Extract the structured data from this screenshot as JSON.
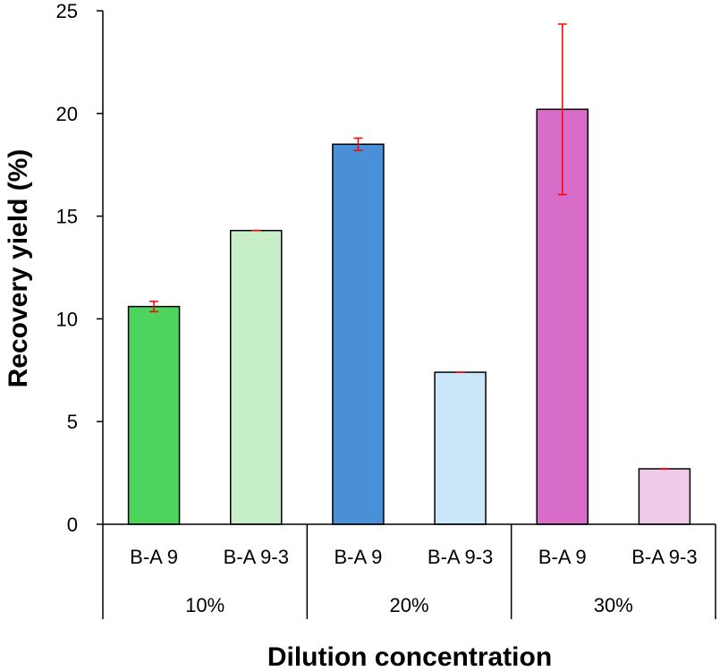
{
  "chart_data": {
    "type": "bar",
    "title": "",
    "xlabel": "Dilution concentration",
    "ylabel": "Recovery yield (%)",
    "ylim": [
      0,
      25
    ],
    "yticks": [
      0,
      5,
      10,
      15,
      20,
      25
    ],
    "groups": [
      {
        "label": "10%",
        "bars": [
          {
            "category": "B-A 9",
            "value": 10.6,
            "error": 0.25,
            "color": "#4cd45c"
          },
          {
            "category": "B-A 9-3",
            "value": 14.3,
            "error": 0.0,
            "color": "#c6efc8"
          }
        ]
      },
      {
        "label": "20%",
        "bars": [
          {
            "category": "B-A 9",
            "value": 18.5,
            "error": 0.3,
            "color": "#4a90d9"
          },
          {
            "category": "B-A 9-3",
            "value": 7.4,
            "error": 0.0,
            "color": "#c9e7f8"
          }
        ]
      },
      {
        "label": "30%",
        "bars": [
          {
            "category": "B-A 9",
            "value": 20.2,
            "error": 4.15,
            "color": "#d86cc9"
          },
          {
            "category": "B-A 9-3",
            "value": 2.7,
            "error": 0.0,
            "color": "#f0cbea"
          }
        ]
      }
    ],
    "error_bar_color": "#ff0000",
    "grid": false,
    "legend": "none"
  }
}
